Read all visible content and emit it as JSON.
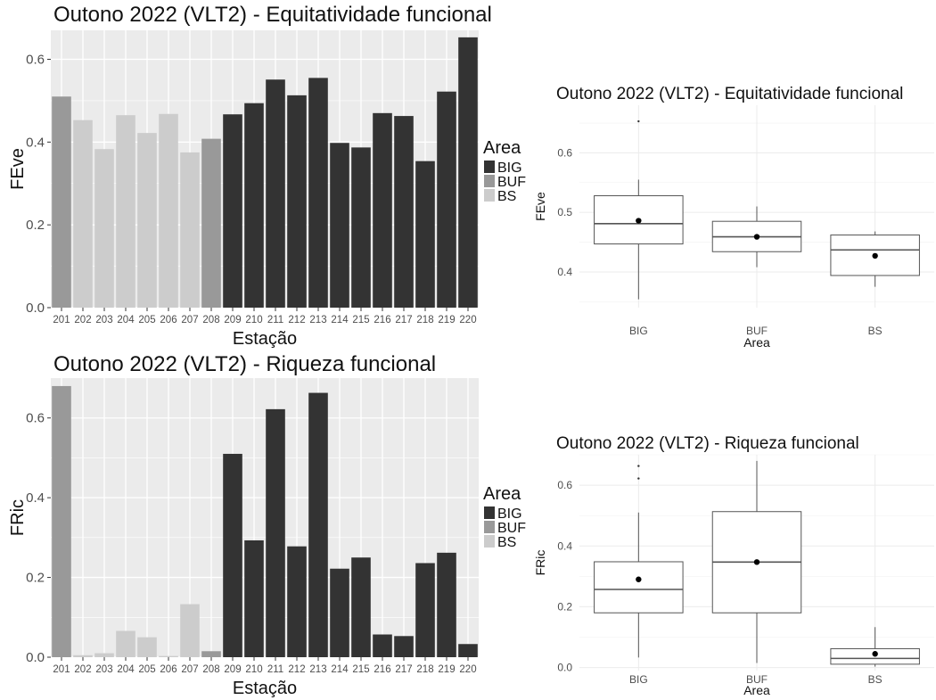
{
  "colors": {
    "BIG": "#333333",
    "BUF": "#999999",
    "BS": "#cccccc",
    "panel": "#ebebeb",
    "grid": "#ffffff"
  },
  "chart_data": [
    {
      "id": "bar_feve",
      "type": "bar",
      "title": "Outono 2022 (VLT2) - Equitatividade funcional",
      "xlabel": "Estação",
      "ylabel": "FEve",
      "ylim": [
        0,
        0.67
      ],
      "yticks": [
        "0.0",
        "0.2",
        "0.4",
        "0.6"
      ],
      "legend": {
        "title": "Area",
        "placement": "right",
        "items": [
          "BIG",
          "BUF",
          "BS"
        ]
      },
      "categories": [
        "201",
        "202",
        "203",
        "204",
        "205",
        "206",
        "207",
        "208",
        "209",
        "210",
        "211",
        "212",
        "213",
        "214",
        "215",
        "216",
        "217",
        "218",
        "219",
        "220"
      ],
      "groups": [
        "BUF",
        "BS",
        "BS",
        "BS",
        "BS",
        "BS",
        "BS",
        "BUF",
        "BIG",
        "BIG",
        "BIG",
        "BIG",
        "BIG",
        "BIG",
        "BIG",
        "BIG",
        "BIG",
        "BIG",
        "BIG",
        "BIG"
      ],
      "values": [
        0.51,
        0.453,
        0.383,
        0.465,
        0.422,
        0.468,
        0.375,
        0.408,
        0.467,
        0.494,
        0.551,
        0.513,
        0.555,
        0.398,
        0.387,
        0.47,
        0.463,
        0.354,
        0.522,
        0.653
      ]
    },
    {
      "id": "bar_fric",
      "type": "bar",
      "title": "Outono 2022 (VLT2) - Riqueza funcional",
      "xlabel": "Estação",
      "ylabel": "FRic",
      "ylim": [
        0,
        0.7
      ],
      "yticks": [
        "0.0",
        "0.2",
        "0.4",
        "0.6"
      ],
      "legend": {
        "title": "Area",
        "placement": "right",
        "items": [
          "BIG",
          "BUF",
          "BS"
        ]
      },
      "categories": [
        "201",
        "202",
        "203",
        "204",
        "205",
        "206",
        "207",
        "208",
        "209",
        "210",
        "211",
        "212",
        "213",
        "214",
        "215",
        "216",
        "217",
        "218",
        "219",
        "220"
      ],
      "groups": [
        "BUF",
        "BS",
        "BS",
        "BS",
        "BS",
        "BS",
        "BS",
        "BUF",
        "BIG",
        "BIG",
        "BIG",
        "BIG",
        "BIG",
        "BIG",
        "BIG",
        "BIG",
        "BIG",
        "BIG",
        "BIG",
        "BIG"
      ],
      "values": [
        0.68,
        0.005,
        0.01,
        0.066,
        0.05,
        0.003,
        0.133,
        0.015,
        0.51,
        0.293,
        0.622,
        0.278,
        0.663,
        0.222,
        0.25,
        0.057,
        0.053,
        0.236,
        0.262,
        0.033
      ]
    },
    {
      "id": "box_feve",
      "type": "box",
      "title": "Outono 2022 (VLT2) - Equitatividade funcional",
      "xlabel": "Area",
      "ylabel": "FEve",
      "ylim": [
        0.34,
        0.68
      ],
      "yticks": [
        0.4,
        0.5,
        0.6
      ],
      "ytick_labels": [
        "0.4",
        "0.5",
        "0.6"
      ],
      "categories": [
        "BIG",
        "BUF",
        "BS"
      ],
      "boxes": [
        {
          "min": 0.354,
          "q1": 0.447,
          "median": 0.481,
          "q3": 0.528,
          "max": 0.555,
          "mean": 0.486,
          "outliers": [
            0.653
          ]
        },
        {
          "min": 0.408,
          "q1": 0.434,
          "median": 0.459,
          "q3": 0.485,
          "max": 0.51,
          "mean": 0.459,
          "outliers": []
        },
        {
          "min": 0.375,
          "q1": 0.394,
          "median": 0.437,
          "q3": 0.462,
          "max": 0.468,
          "mean": 0.427,
          "outliers": []
        }
      ]
    },
    {
      "id": "box_fric",
      "type": "box",
      "title": "Outono 2022 (VLT2) - Riqueza funcional",
      "xlabel": "Area",
      "ylabel": "FRic",
      "ylim": [
        -0.01,
        0.7
      ],
      "yticks": [
        0.0,
        0.2,
        0.4,
        0.6
      ],
      "ytick_labels": [
        "0.0",
        "0.2",
        "0.4",
        "0.6"
      ],
      "categories": [
        "BIG",
        "BUF",
        "BS"
      ],
      "boxes": [
        {
          "min": 0.033,
          "q1": 0.18,
          "median": 0.257,
          "q3": 0.348,
          "max": 0.51,
          "mean": 0.29,
          "outliers": [
            0.622,
            0.663
          ]
        },
        {
          "min": 0.015,
          "q1": 0.18,
          "median": 0.347,
          "q3": 0.513,
          "max": 0.68,
          "mean": 0.347,
          "outliers": []
        },
        {
          "min": 0.003,
          "q1": 0.011,
          "median": 0.03,
          "q3": 0.062,
          "max": 0.133,
          "mean": 0.045,
          "outliers": []
        }
      ]
    }
  ]
}
